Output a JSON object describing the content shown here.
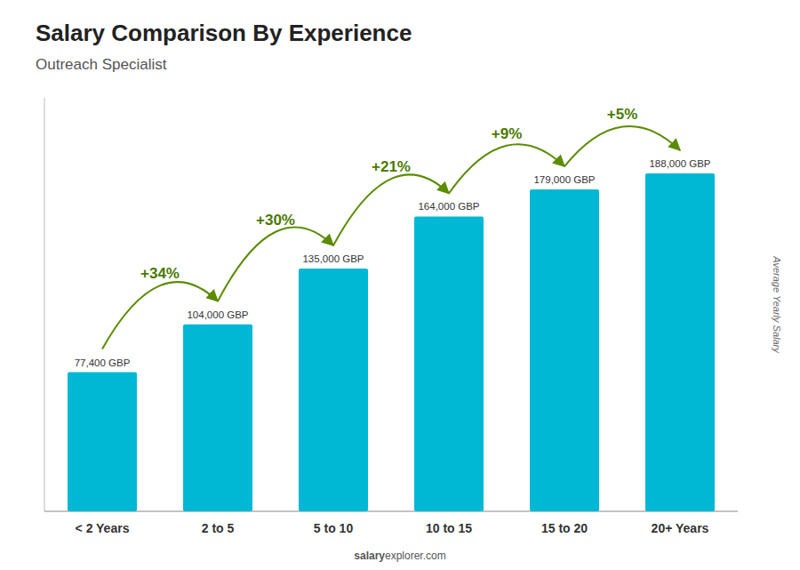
{
  "chart_data": {
    "type": "bar",
    "title": "Salary Comparison By Experience",
    "subtitle": "Outreach Specialist",
    "ylabel": "Average Yearly Salary",
    "footer_bold": "salary",
    "footer": "explorer.com",
    "categories": [
      "< 2 Years",
      "2 to 5",
      "5 to 10",
      "10 to 15",
      "15 to 20",
      "20+ Years"
    ],
    "values": [
      77400,
      104000,
      135000,
      164000,
      179000,
      188000
    ],
    "value_labels": [
      "77,400 GBP",
      "104,000 GBP",
      "135,000 GBP",
      "164,000 GBP",
      "179,000 GBP",
      "188,000 GBP"
    ],
    "annotations": [
      "+34%",
      "+30%",
      "+21%",
      "+9%",
      "+5%"
    ],
    "color": "#00b8d4",
    "ylim": [
      0,
      230000
    ],
    "grid": false,
    "data_labels": true,
    "tick_labels": "x"
  }
}
